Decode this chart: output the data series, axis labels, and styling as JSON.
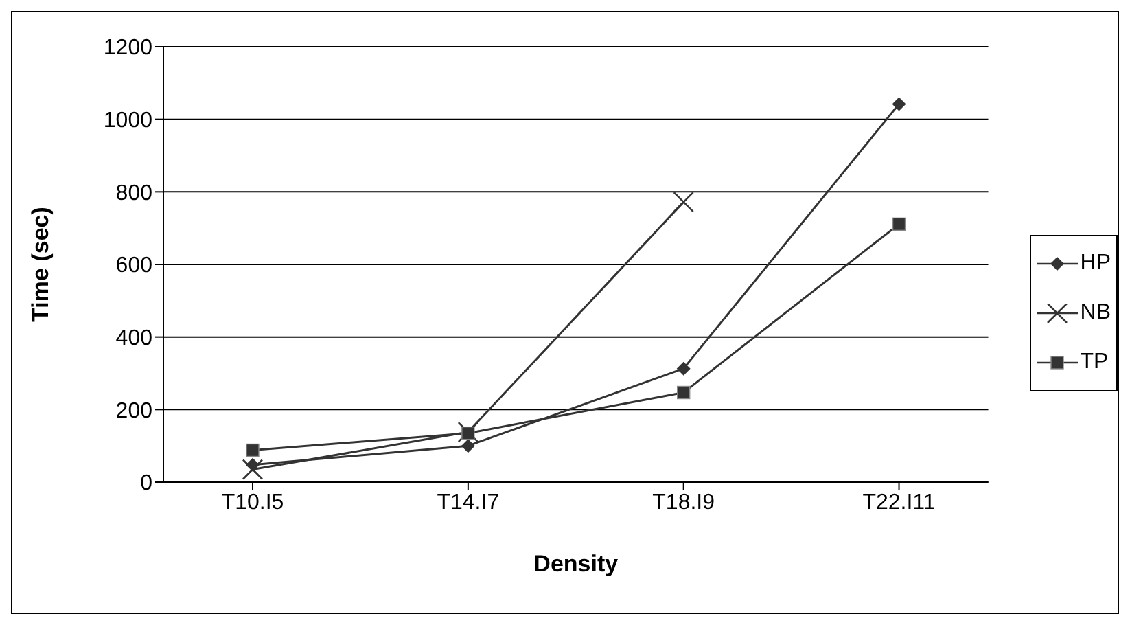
{
  "chart_data": {
    "type": "line",
    "xlabel": "Density",
    "ylabel": "Time (sec)",
    "categories": [
      "T10.I5",
      "T14.I7",
      "T18.I9",
      "T22.I11"
    ],
    "series": [
      {
        "name": "HP",
        "color": "#333333",
        "marker": "diamond",
        "values": [
          48,
          100,
          313,
          1042
        ]
      },
      {
        "name": "NB",
        "color": "#333333",
        "marker": "cross",
        "values": [
          35,
          138,
          772,
          null
        ]
      },
      {
        "name": "TP",
        "color": "#333333",
        "marker": "square",
        "values": [
          88,
          135,
          247,
          711
        ]
      }
    ],
    "ylim": [
      0,
      1200
    ],
    "yticks": [
      0,
      200,
      400,
      600,
      800,
      1000,
      1200
    ],
    "grid": "y",
    "legend": "right"
  }
}
